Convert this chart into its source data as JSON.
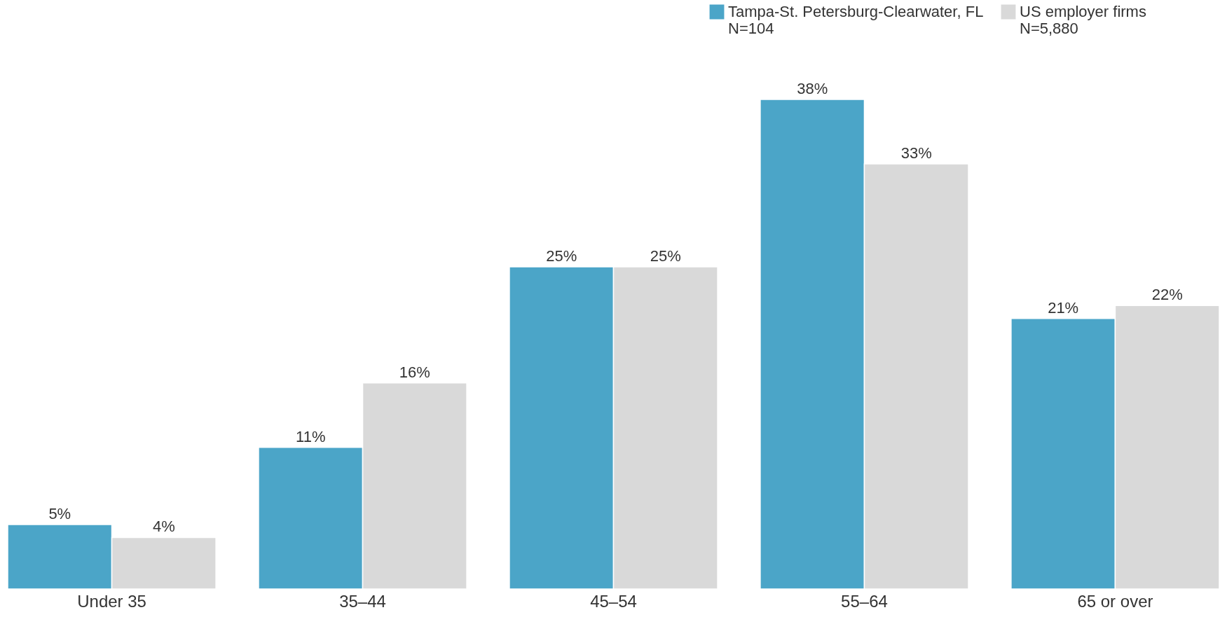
{
  "chart_data": {
    "type": "bar",
    "categories": [
      "Under 35",
      "35–44",
      "45–54",
      "55–64",
      "65 or over"
    ],
    "series": [
      {
        "name": "Tampa-St. Petersburg-Clearwater, FL\nN=104",
        "color": "#4ba5c8",
        "values": [
          5,
          11,
          25,
          38,
          21
        ],
        "value_labels": [
          "5%",
          "11%",
          "25%",
          "38%",
          "21%"
        ]
      },
      {
        "name": "US employer firms\nN=5,880",
        "color": "#d9d9d9",
        "values": [
          4,
          16,
          25,
          33,
          22
        ],
        "value_labels": [
          "4%",
          "16%",
          "25%",
          "33%",
          "22%"
        ]
      }
    ],
    "tick_labels": "x",
    "legend": "top right",
    "grid": false
  }
}
